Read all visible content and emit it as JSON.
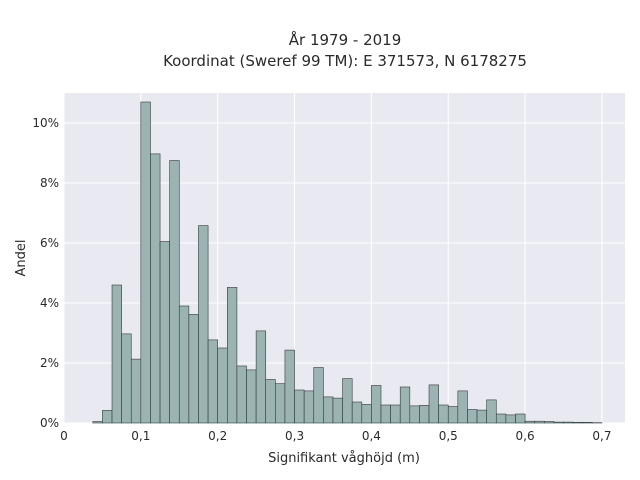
{
  "chart_data": {
    "type": "bar",
    "title": "År 1979 - 2019",
    "subtitle": "Koordinat (Sweref 99 TM): E 371573, N 6178275",
    "xlabel": "Signifikant våghöjd (m)",
    "ylabel": "Andel",
    "xlim": [
      0,
      0.73
    ],
    "ylim": [
      0,
      11.0
    ],
    "grid": true,
    "bin_width": 0.0125,
    "colors": {
      "bar_fill": "#9bb4b3",
      "bar_stroke": "#2e3b3b",
      "plot_bg": "#e9eaf1",
      "grid": "#ffffff"
    },
    "x_ticks": [
      {
        "value": 0.0,
        "label": "0"
      },
      {
        "value": 0.1,
        "label": "0,1"
      },
      {
        "value": 0.2,
        "label": "0,2"
      },
      {
        "value": 0.3,
        "label": "0,3"
      },
      {
        "value": 0.4,
        "label": "0,4"
      },
      {
        "value": 0.5,
        "label": "0,5"
      },
      {
        "value": 0.6,
        "label": "0,6"
      },
      {
        "value": 0.7,
        "label": "0,7"
      }
    ],
    "y_ticks": [
      {
        "value": 0,
        "label": "0%"
      },
      {
        "value": 2,
        "label": "2%"
      },
      {
        "value": 4,
        "label": "4%"
      },
      {
        "value": 6,
        "label": "6%"
      },
      {
        "value": 8,
        "label": "8%"
      },
      {
        "value": 10,
        "label": "10%"
      }
    ],
    "x": [
      0.0375,
      0.05,
      0.0625,
      0.075,
      0.0875,
      0.1,
      0.1125,
      0.125,
      0.1375,
      0.15,
      0.1625,
      0.175,
      0.1875,
      0.2,
      0.2125,
      0.225,
      0.2375,
      0.25,
      0.2625,
      0.275,
      0.2875,
      0.3,
      0.3125,
      0.325,
      0.3375,
      0.35,
      0.3625,
      0.375,
      0.3875,
      0.4,
      0.4125,
      0.425,
      0.4375,
      0.45,
      0.4625,
      0.475,
      0.4875,
      0.5,
      0.5125,
      0.525,
      0.5375,
      0.55,
      0.5625,
      0.575,
      0.5875,
      0.6,
      0.6125,
      0.625,
      0.6375,
      0.65,
      0.6625,
      0.675,
      0.6875
    ],
    "values": [
      0.05,
      0.42,
      4.6,
      2.97,
      2.13,
      10.7,
      8.97,
      6.05,
      8.75,
      3.9,
      3.62,
      6.58,
      2.77,
      2.5,
      4.52,
      1.9,
      1.77,
      3.07,
      1.45,
      1.31,
      2.43,
      1.1,
      1.07,
      1.85,
      0.87,
      0.83,
      1.48,
      0.7,
      0.62,
      1.25,
      0.6,
      0.6,
      1.2,
      0.57,
      0.59,
      1.27,
      0.6,
      0.55,
      1.07,
      0.45,
      0.43,
      0.77,
      0.3,
      0.27,
      0.3,
      0.06,
      0.06,
      0.05,
      0.03,
      0.03,
      0.02,
      0.02,
      0.01
    ]
  }
}
